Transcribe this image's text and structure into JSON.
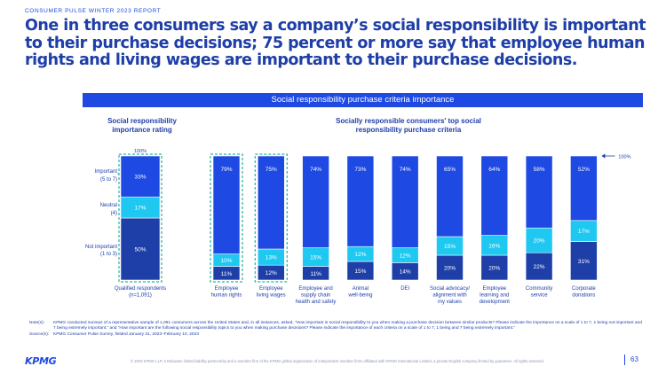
{
  "header": {
    "report_label": "CONSUMER PULSE WINTER 2023 REPORT",
    "headline": "One in three consumers say a company’s social responsibility is important to their purchase decisions; 75 percent or more say that employee human rights and living wages are important to their purchase decisions."
  },
  "banner": "Social responsibility purchase criteria importance",
  "colors": {
    "important": "#1e49e2",
    "neutral": "#1ec8f0",
    "not_important": "#1e3ea8",
    "dark": "#1e3ea8",
    "highlight_border": "#26b5a8"
  },
  "chart_data": [
    {
      "type": "bar",
      "title": "Social responsibility importance rating",
      "categories": [
        "Qualified respondents (n=1,091)"
      ],
      "stacked": true,
      "top_label": "100%",
      "series": [
        {
          "name": "Not important (1 to 3)",
          "values": [
            50
          ]
        },
        {
          "name": "Neutral (4)",
          "values": [
            17
          ]
        },
        {
          "name": "Important (5 to 7)",
          "values": [
            33
          ]
        }
      ],
      "value_labels": {
        "important": "33%",
        "neutral": "17%",
        "not_important": "50%"
      },
      "row_labels": [
        "Important (5 to 7)",
        "Neutral (4)",
        "Not important (1 to 3)"
      ],
      "category_labels": [
        "Qualified respondents",
        "(n=1,091)"
      ]
    },
    {
      "type": "bar",
      "title": "Socially responsible consumers' top social responsibility purchase criteria",
      "stacked": true,
      "reference_label": "100%",
      "categories": [
        [
          "Employee",
          "human rights"
        ],
        [
          "Employee",
          "living wages"
        ],
        [
          "Employee and",
          "supply chain",
          "health and safety"
        ],
        [
          "Animal",
          "well-being"
        ],
        [
          "DEI"
        ],
        [
          "Social advocacy/",
          "alignment with",
          "my values"
        ],
        [
          "Employee",
          "learning and",
          "development"
        ],
        [
          "Community",
          "service"
        ],
        [
          "Corporate",
          "donations"
        ]
      ],
      "series": [
        {
          "values": [
            11,
            12,
            11,
            15,
            14,
            20,
            20,
            22,
            31
          ]
        },
        {
          "values": [
            10,
            13,
            15,
            12,
            12,
            15,
            16,
            20,
            17
          ]
        },
        {
          "values": [
            79,
            75,
            74,
            73,
            74,
            65,
            64,
            58,
            52
          ]
        }
      ],
      "highlighted": [
        0,
        1
      ]
    }
  ],
  "notes": {
    "note_label": "Note(s):",
    "note_text": "KPMG conducted surveys of a representative sample of 1,091 consumers across the United States and, in all instances, asked, “How important is social responsibility to you when making a purchase decision between similar products? Please indicate the importance on a scale of 1 to 7, 1 being not important and 7 being extremely important.” and “How important are the following social responsibility topics to you when making purchase decisions? Please indicate the importance of each criteria on a scale of 1 to 7, 1 being and 7 being extremely important.”",
    "source_label": "Source(s):",
    "source_text": "KPMG Consumer Pulse Survey, fielded January 31, 2023–February 10, 2023"
  },
  "footer": {
    "logo": "KPMG",
    "copyright": "© 2023 KPMG LLP, a Delaware limited liability partnership and a member firm of the KPMG global organization of independent member firms affiliated with KPMG International Limited, a private English company limited by guarantee. All rights reserved.",
    "page_number": "63"
  }
}
